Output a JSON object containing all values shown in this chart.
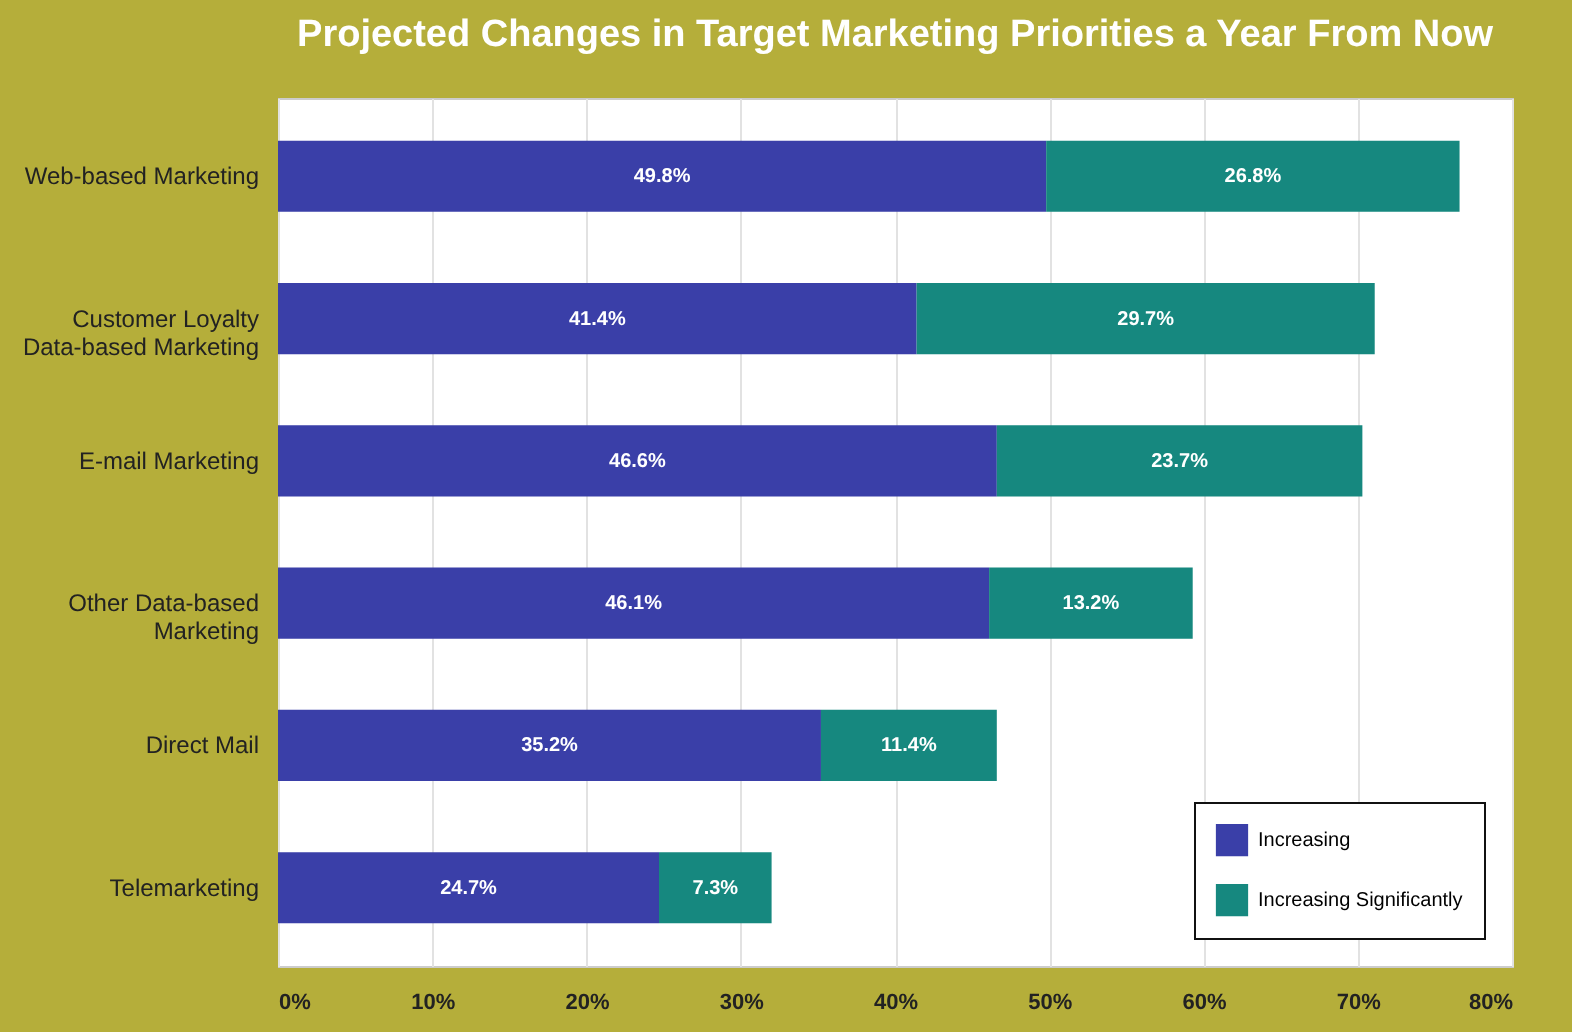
{
  "chart_data": {
    "type": "bar",
    "orientation": "horizontal",
    "stacked": true,
    "title": "Projected Changes in Target Marketing Priorities a Year From Now",
    "categories": [
      "Web-based Marketing",
      "Customer Loyalty Data-based Marketing",
      "E-mail Marketing",
      "Other Data-based Marketing",
      "Direct Mail",
      "Telemarketing"
    ],
    "series": [
      {
        "name": "Increasing",
        "color": "#3a3fa8",
        "values": [
          49.8,
          41.4,
          46.6,
          46.1,
          35.2,
          24.7
        ],
        "value_labels": [
          "49.8%",
          "41.4%",
          "46.6%",
          "46.1%",
          "35.2%",
          "24.7%"
        ]
      },
      {
        "name": "Increasing Significantly",
        "color": "#16887f",
        "values": [
          26.8,
          29.7,
          23.7,
          13.2,
          11.4,
          7.3
        ],
        "value_labels": [
          "26.8%",
          "29.7%",
          "23.7%",
          "13.2%",
          "11.4%",
          "7.3%"
        ]
      }
    ],
    "xlim": [
      0,
      80
    ],
    "xticks": [
      {
        "value": 0,
        "label": "0%"
      },
      {
        "value": 10,
        "label": "10%"
      },
      {
        "value": 20,
        "label": "20%"
      },
      {
        "value": 30,
        "label": "30%"
      },
      {
        "value": 40,
        "label": "40%"
      },
      {
        "value": 50,
        "label": "50%"
      },
      {
        "value": 60,
        "label": "60%"
      },
      {
        "value": 70,
        "label": "70%"
      },
      {
        "value": 80,
        "label": "80%"
      }
    ],
    "grid": "x",
    "legend": "bottom right"
  }
}
